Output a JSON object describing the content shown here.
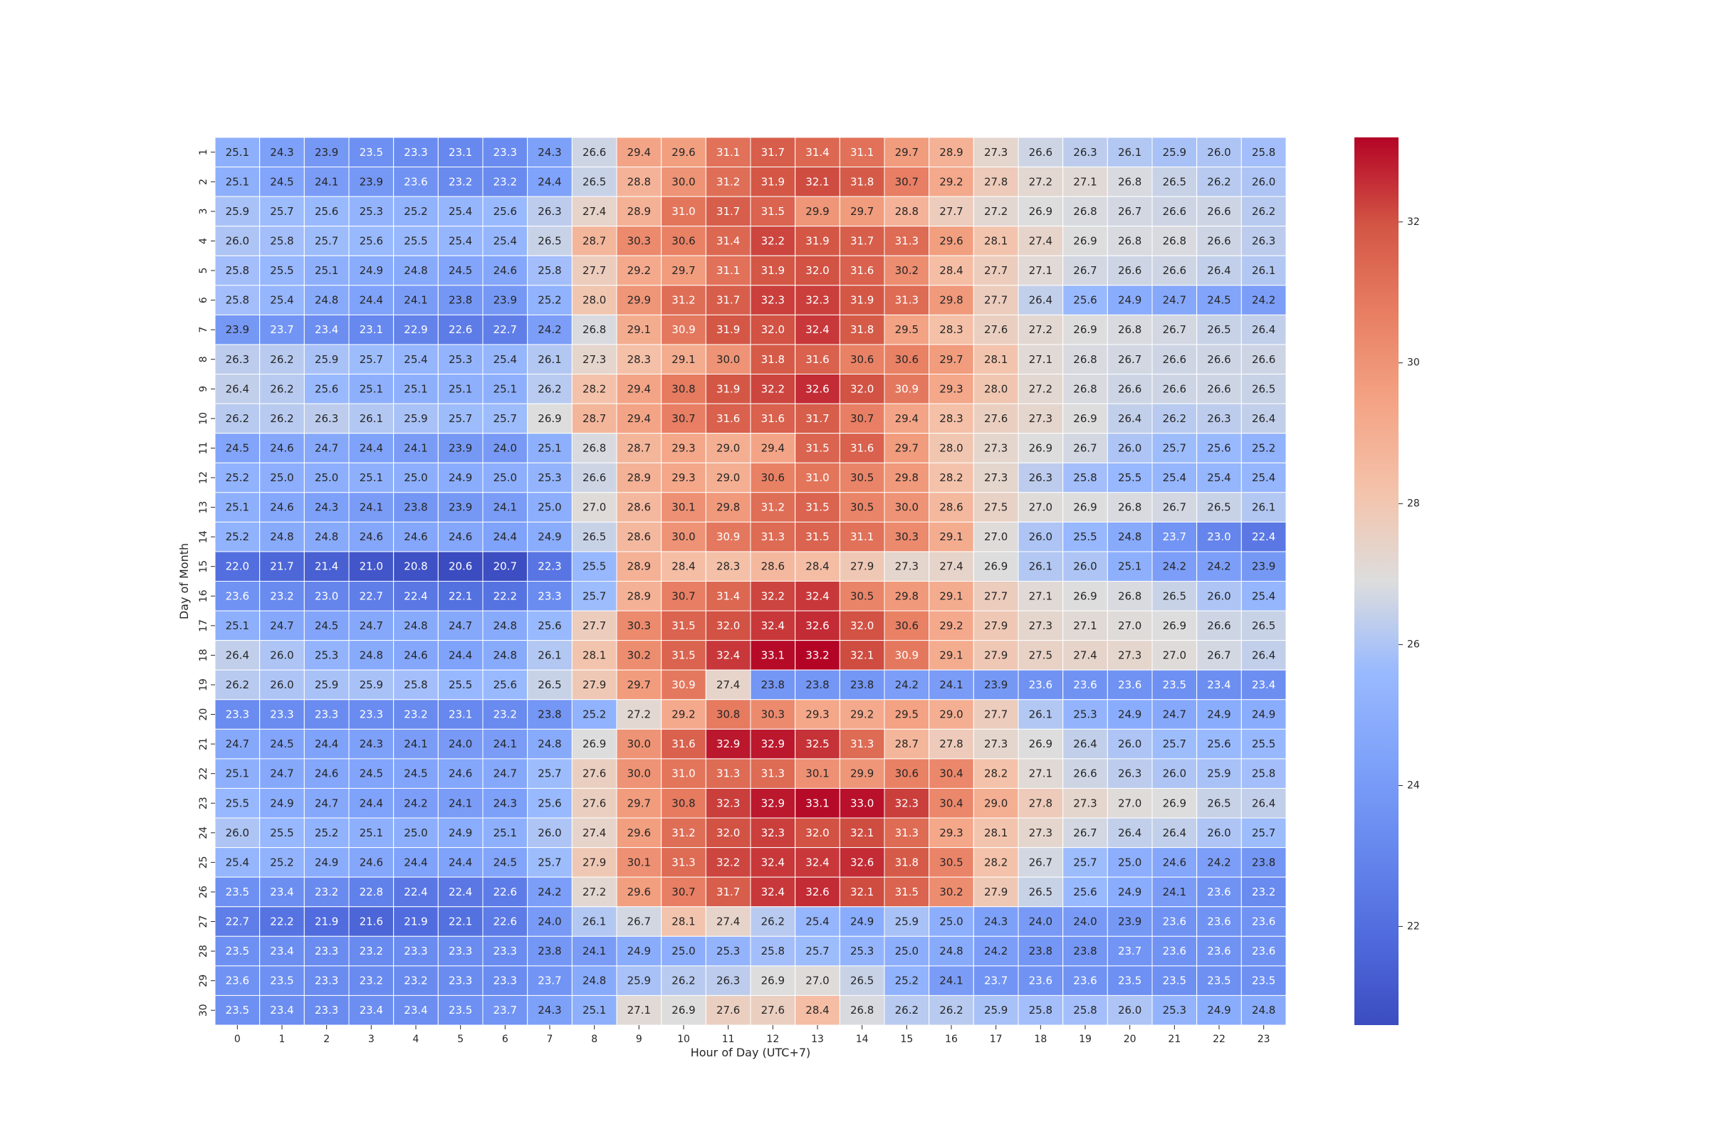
{
  "chart_data": {
    "type": "heatmap",
    "title": "",
    "xlabel": "Hour of Day (UTC+7)",
    "ylabel": "Day of Month",
    "x_categories": [
      "0",
      "1",
      "2",
      "3",
      "4",
      "5",
      "6",
      "7",
      "8",
      "9",
      "10",
      "11",
      "12",
      "13",
      "14",
      "15",
      "16",
      "17",
      "18",
      "19",
      "20",
      "21",
      "22",
      "23"
    ],
    "y_categories": [
      "1",
      "2",
      "3",
      "4",
      "5",
      "6",
      "7",
      "8",
      "9",
      "10",
      "11",
      "12",
      "13",
      "14",
      "15",
      "16",
      "17",
      "18",
      "19",
      "20",
      "21",
      "22",
      "23",
      "24",
      "25",
      "26",
      "27",
      "28",
      "29",
      "30"
    ],
    "values": [
      [
        25.1,
        24.3,
        23.9,
        23.5,
        23.3,
        23.1,
        23.3,
        24.3,
        26.6,
        29.4,
        29.6,
        31.1,
        31.7,
        31.4,
        31.1,
        29.7,
        28.9,
        27.3,
        26.6,
        26.3,
        26.1,
        25.9,
        26.0,
        25.8
      ],
      [
        25.1,
        24.5,
        24.1,
        23.9,
        23.6,
        23.2,
        23.2,
        24.4,
        26.5,
        28.8,
        30.0,
        31.2,
        31.9,
        32.1,
        31.8,
        30.7,
        29.2,
        27.8,
        27.2,
        27.1,
        26.8,
        26.5,
        26.2,
        26.0
      ],
      [
        25.9,
        25.7,
        25.6,
        25.3,
        25.2,
        25.4,
        25.6,
        26.3,
        27.4,
        28.9,
        31.0,
        31.7,
        31.5,
        29.9,
        29.7,
        28.8,
        27.7,
        27.2,
        26.9,
        26.8,
        26.7,
        26.6,
        26.6,
        26.2
      ],
      [
        26.0,
        25.8,
        25.7,
        25.6,
        25.5,
        25.4,
        25.4,
        26.5,
        28.7,
        30.3,
        30.6,
        31.4,
        32.2,
        31.9,
        31.7,
        31.3,
        29.6,
        28.1,
        27.4,
        26.9,
        26.8,
        26.8,
        26.6,
        26.3
      ],
      [
        25.8,
        25.5,
        25.1,
        24.9,
        24.8,
        24.5,
        24.6,
        25.8,
        27.7,
        29.2,
        29.7,
        31.1,
        31.9,
        32.0,
        31.6,
        30.2,
        28.4,
        27.7,
        27.1,
        26.7,
        26.6,
        26.6,
        26.4,
        26.1
      ],
      [
        25.8,
        25.4,
        24.8,
        24.4,
        24.1,
        23.8,
        23.9,
        25.2,
        28.0,
        29.9,
        31.2,
        31.7,
        32.3,
        32.3,
        31.9,
        31.3,
        29.8,
        27.7,
        26.4,
        25.6,
        24.9,
        24.7,
        24.5,
        24.2
      ],
      [
        23.9,
        23.7,
        23.4,
        23.1,
        22.9,
        22.6,
        22.7,
        24.2,
        26.8,
        29.1,
        30.9,
        31.9,
        32.0,
        32.4,
        31.8,
        29.5,
        28.3,
        27.6,
        27.2,
        26.9,
        26.8,
        26.7,
        26.5,
        26.4
      ],
      [
        26.3,
        26.2,
        25.9,
        25.7,
        25.4,
        25.3,
        25.4,
        26.1,
        27.3,
        28.3,
        29.1,
        30.0,
        31.8,
        31.6,
        30.6,
        30.6,
        29.7,
        28.1,
        27.1,
        26.8,
        26.7,
        26.6,
        26.6,
        26.6
      ],
      [
        26.4,
        26.2,
        25.6,
        25.1,
        25.1,
        25.1,
        25.1,
        26.2,
        28.2,
        29.4,
        30.8,
        31.9,
        32.2,
        32.6,
        32.0,
        30.9,
        29.3,
        28.0,
        27.2,
        26.8,
        26.6,
        26.6,
        26.6,
        26.5
      ],
      [
        26.2,
        26.2,
        26.3,
        26.1,
        25.9,
        25.7,
        25.7,
        26.9,
        28.7,
        29.4,
        30.7,
        31.6,
        31.6,
        31.7,
        30.7,
        29.4,
        28.3,
        27.6,
        27.3,
        26.9,
        26.4,
        26.2,
        26.3,
        26.4
      ],
      [
        24.5,
        24.6,
        24.7,
        24.4,
        24.1,
        23.9,
        24.0,
        25.1,
        26.8,
        28.7,
        29.3,
        29.0,
        29.4,
        31.5,
        31.6,
        29.7,
        28.0,
        27.3,
        26.9,
        26.7,
        26.0,
        25.7,
        25.6,
        25.2
      ],
      [
        25.2,
        25.0,
        25.0,
        25.1,
        25.0,
        24.9,
        25.0,
        25.3,
        26.6,
        28.9,
        29.3,
        29.0,
        30.6,
        31.0,
        30.5,
        29.8,
        28.2,
        27.3,
        26.3,
        25.8,
        25.5,
        25.4,
        25.4,
        25.4
      ],
      [
        25.1,
        24.6,
        24.3,
        24.1,
        23.8,
        23.9,
        24.1,
        25.0,
        27.0,
        28.6,
        30.1,
        29.8,
        31.2,
        31.5,
        30.5,
        30.0,
        28.6,
        27.5,
        27.0,
        26.9,
        26.8,
        26.7,
        26.5,
        26.1
      ],
      [
        25.2,
        24.8,
        24.8,
        24.6,
        24.6,
        24.6,
        24.4,
        24.9,
        26.5,
        28.6,
        30.0,
        30.9,
        31.3,
        31.5,
        31.1,
        30.3,
        29.1,
        27.0,
        26.0,
        25.5,
        24.8,
        23.7,
        23.0,
        22.4
      ],
      [
        22.0,
        21.7,
        21.4,
        21.0,
        20.8,
        20.6,
        20.7,
        22.3,
        25.5,
        28.9,
        28.4,
        28.3,
        28.6,
        28.4,
        27.9,
        27.3,
        27.4,
        26.9,
        26.1,
        26.0,
        25.1,
        24.2,
        24.2,
        23.9
      ],
      [
        23.6,
        23.2,
        23.0,
        22.7,
        22.4,
        22.1,
        22.2,
        23.3,
        25.7,
        28.9,
        30.7,
        31.4,
        32.2,
        32.4,
        30.5,
        29.8,
        29.1,
        27.7,
        27.1,
        26.9,
        26.8,
        26.5,
        26.0,
        25.4
      ],
      [
        25.1,
        24.7,
        24.5,
        24.7,
        24.8,
        24.7,
        24.8,
        25.6,
        27.7,
        30.3,
        31.5,
        32.0,
        32.4,
        32.6,
        32.0,
        30.6,
        29.2,
        27.9,
        27.3,
        27.1,
        27.0,
        26.9,
        26.6,
        26.5
      ],
      [
        26.4,
        26.0,
        25.3,
        24.8,
        24.6,
        24.4,
        24.8,
        26.1,
        28.1,
        30.2,
        31.5,
        32.4,
        33.1,
        33.2,
        32.1,
        30.9,
        29.1,
        27.9,
        27.5,
        27.4,
        27.3,
        27.0,
        26.7,
        26.4
      ],
      [
        26.2,
        26.0,
        25.9,
        25.9,
        25.8,
        25.5,
        25.6,
        26.5,
        27.9,
        29.7,
        30.9,
        27.4,
        23.8,
        23.8,
        23.8,
        24.2,
        24.1,
        23.9,
        23.6,
        23.6,
        23.6,
        23.5,
        23.4,
        23.4
      ],
      [
        23.3,
        23.3,
        23.3,
        23.3,
        23.2,
        23.1,
        23.2,
        23.8,
        25.2,
        27.2,
        29.2,
        30.8,
        30.3,
        29.3,
        29.2,
        29.5,
        29.0,
        27.7,
        26.1,
        25.3,
        24.9,
        24.7,
        24.9,
        24.9
      ],
      [
        24.7,
        24.5,
        24.4,
        24.3,
        24.1,
        24.0,
        24.1,
        24.8,
        26.9,
        30.0,
        31.6,
        32.9,
        32.9,
        32.5,
        31.3,
        28.7,
        27.8,
        27.3,
        26.9,
        26.4,
        26.0,
        25.7,
        25.6,
        25.5
      ],
      [
        25.1,
        24.7,
        24.6,
        24.5,
        24.5,
        24.6,
        24.7,
        25.7,
        27.6,
        30.0,
        31.0,
        31.3,
        31.3,
        30.1,
        29.9,
        30.6,
        30.4,
        28.2,
        27.1,
        26.6,
        26.3,
        26.0,
        25.9,
        25.8
      ],
      [
        25.5,
        24.9,
        24.7,
        24.4,
        24.2,
        24.1,
        24.3,
        25.6,
        27.6,
        29.7,
        30.8,
        32.3,
        32.9,
        33.1,
        33.0,
        32.3,
        30.4,
        29.0,
        27.8,
        27.3,
        27.0,
        26.9,
        26.5,
        26.4
      ],
      [
        26.0,
        25.5,
        25.2,
        25.1,
        25.0,
        24.9,
        25.1,
        26.0,
        27.4,
        29.6,
        31.2,
        32.0,
        32.3,
        32.0,
        32.1,
        31.3,
        29.3,
        28.1,
        27.3,
        26.7,
        26.4,
        26.4,
        26.0,
        25.7
      ],
      [
        25.4,
        25.2,
        24.9,
        24.6,
        24.4,
        24.4,
        24.5,
        25.7,
        27.9,
        30.1,
        31.3,
        32.2,
        32.4,
        32.4,
        32.6,
        31.8,
        30.5,
        28.2,
        26.7,
        25.7,
        25.0,
        24.6,
        24.2,
        23.8
      ],
      [
        23.5,
        23.4,
        23.2,
        22.8,
        22.4,
        22.4,
        22.6,
        24.2,
        27.2,
        29.6,
        30.7,
        31.7,
        32.4,
        32.6,
        32.1,
        31.5,
        30.2,
        27.9,
        26.5,
        25.6,
        24.9,
        24.1,
        23.6,
        23.2
      ],
      [
        22.7,
        22.2,
        21.9,
        21.6,
        21.9,
        22.1,
        22.6,
        24.0,
        26.1,
        26.7,
        28.1,
        27.4,
        26.2,
        25.4,
        24.9,
        25.9,
        25.0,
        24.3,
        24.0,
        24.0,
        23.9,
        23.6,
        23.6,
        23.6
      ],
      [
        23.5,
        23.4,
        23.3,
        23.2,
        23.3,
        23.3,
        23.3,
        23.8,
        24.1,
        24.9,
        25.0,
        25.3,
        25.8,
        25.7,
        25.3,
        25.0,
        24.8,
        24.2,
        23.8,
        23.8,
        23.7,
        23.6,
        23.6,
        23.6
      ],
      [
        23.6,
        23.5,
        23.3,
        23.2,
        23.2,
        23.3,
        23.3,
        23.7,
        24.8,
        25.9,
        26.2,
        26.3,
        26.9,
        27.0,
        26.5,
        25.2,
        24.1,
        23.7,
        23.6,
        23.6,
        23.5,
        23.5,
        23.5,
        23.5
      ],
      [
        23.5,
        23.4,
        23.3,
        23.4,
        23.4,
        23.5,
        23.7,
        24.3,
        25.1,
        27.1,
        26.9,
        27.6,
        27.6,
        28.4,
        26.8,
        26.2,
        26.2,
        25.9,
        25.8,
        25.8,
        26.0,
        25.3,
        24.9,
        24.8
      ]
    ],
    "colormap": "coolwarm",
    "vmin": 20.6,
    "vmax": 33.2,
    "colorbar_ticks": [
      22,
      24,
      26,
      28,
      30,
      32
    ],
    "cell_border_color": "#ffffff",
    "annotation_format": "0.1f"
  }
}
